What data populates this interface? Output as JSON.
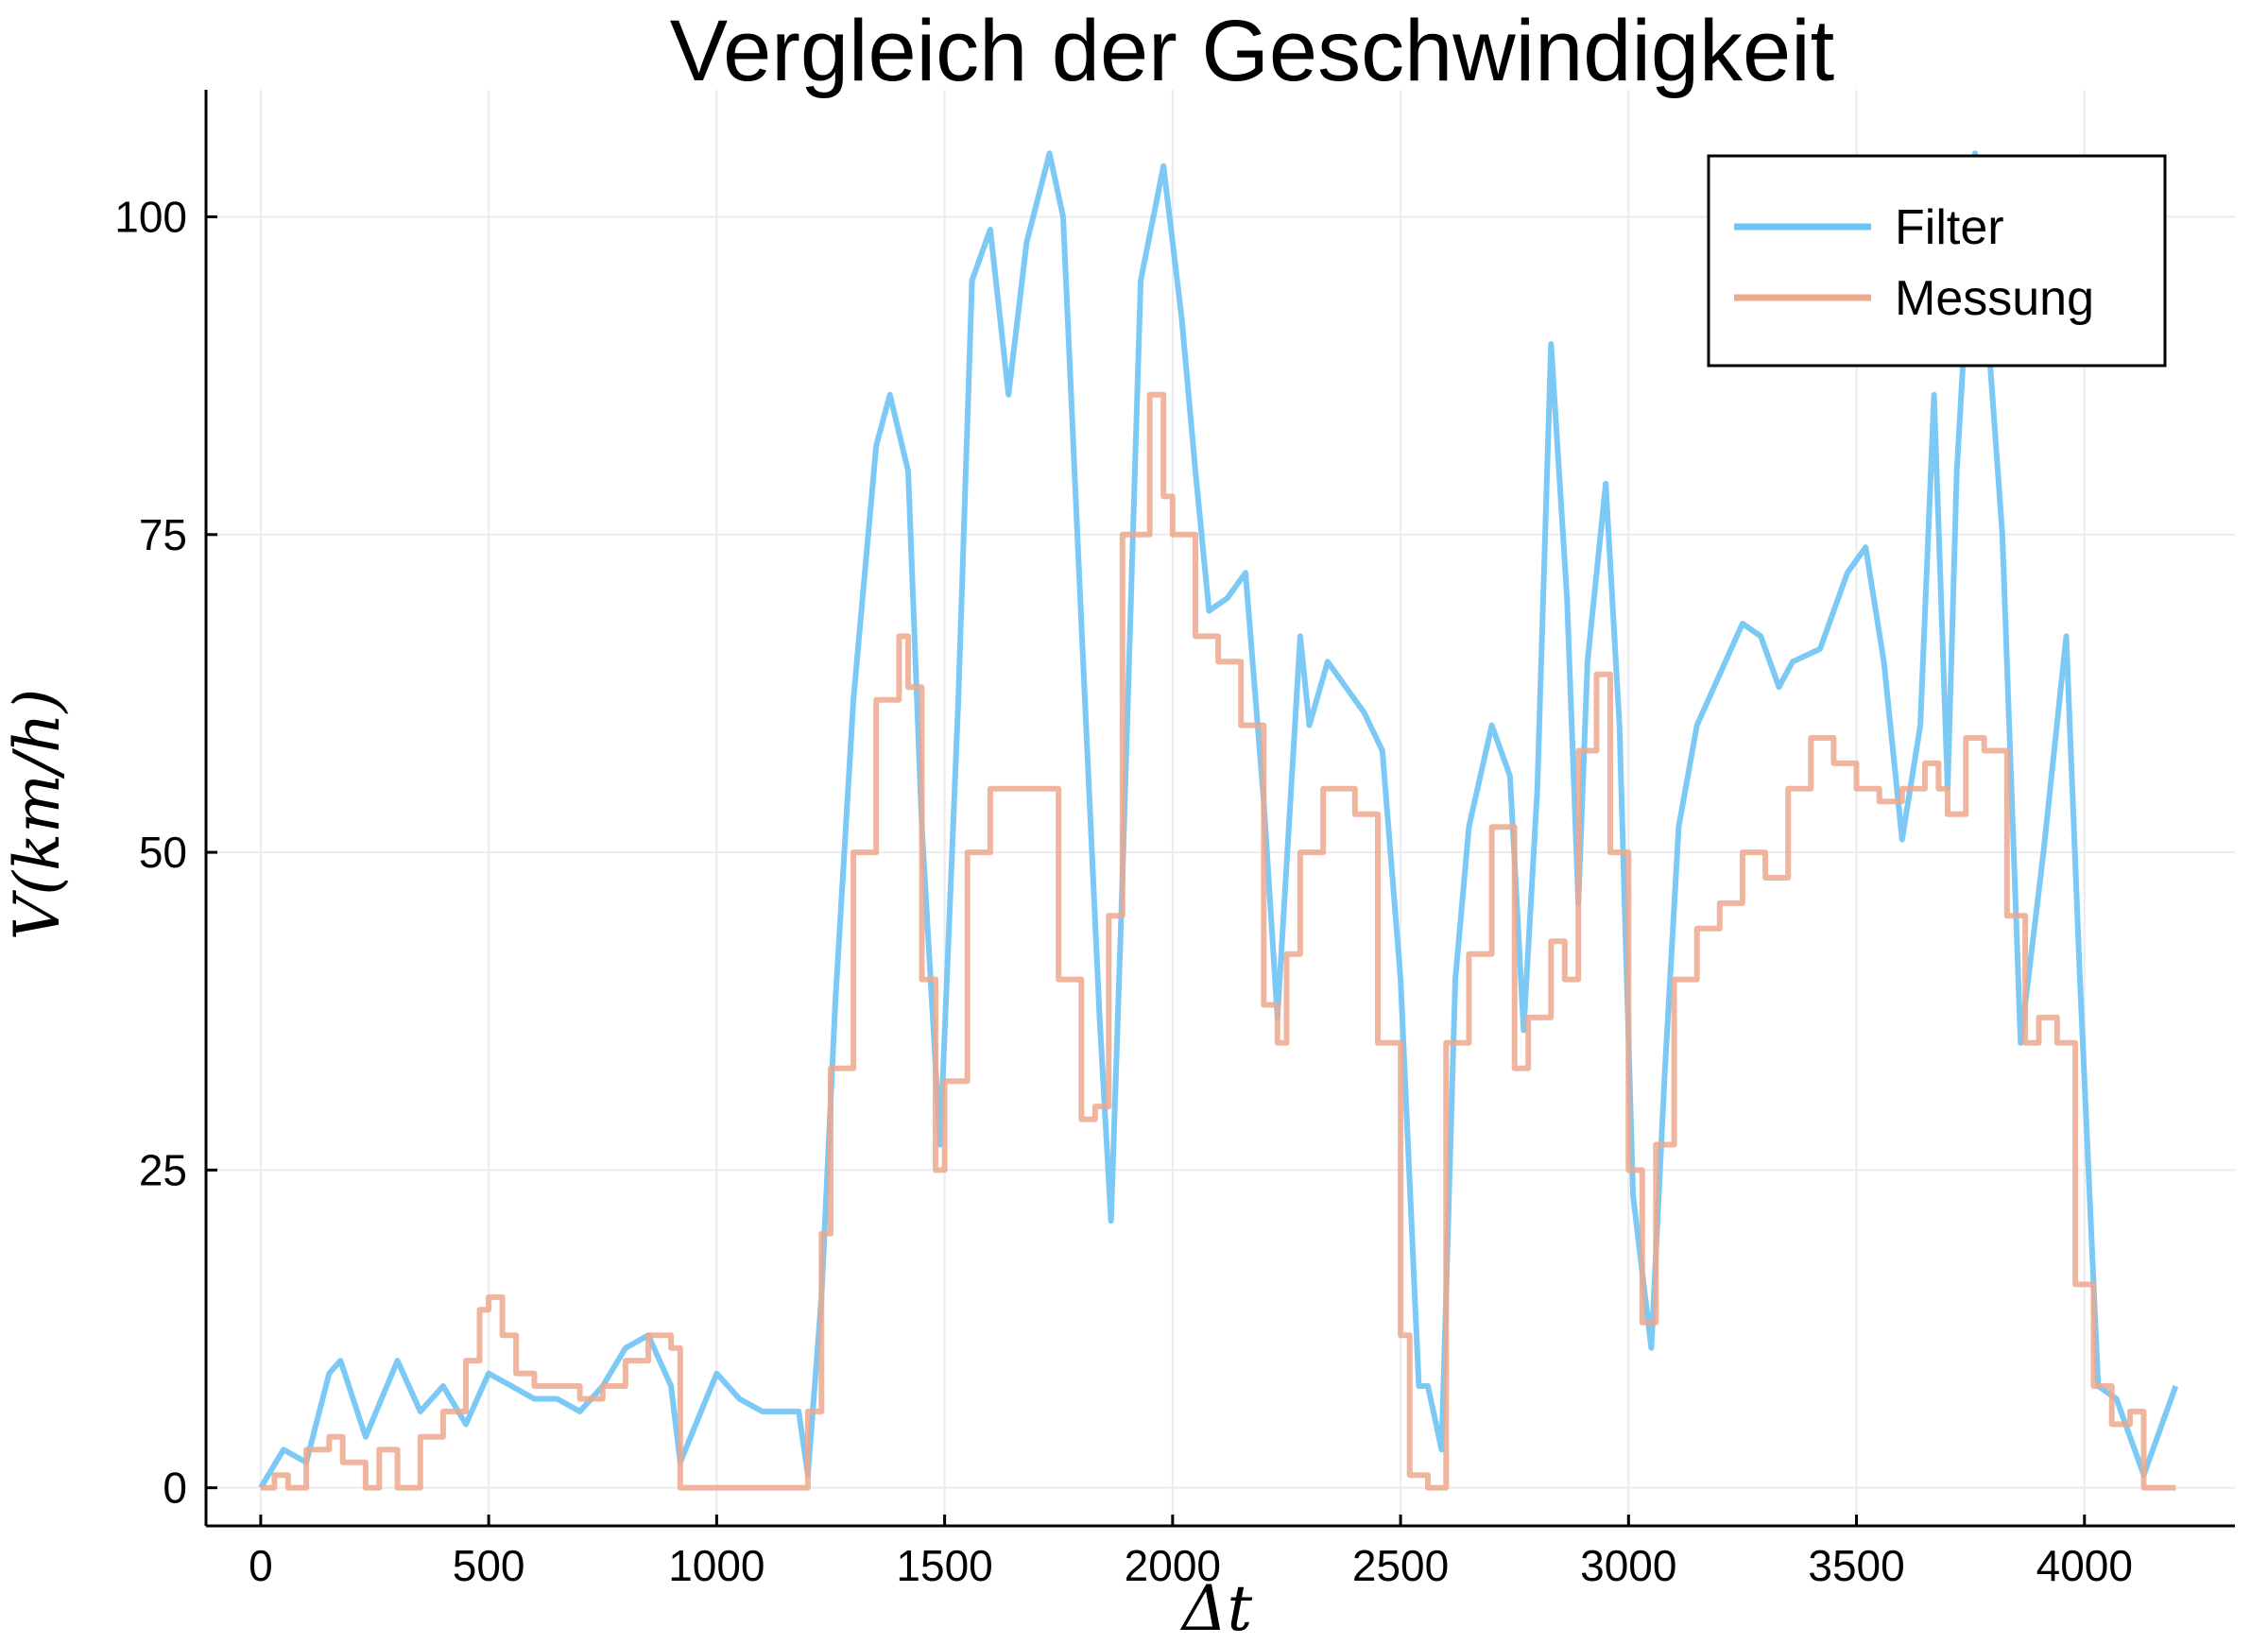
{
  "chart_data": {
    "type": "line",
    "title": "Vergleich der Geschwindigkeit",
    "xlabel": "Δt",
    "ylabel": "V(km/h)",
    "xlim": [
      -120,
      4330
    ],
    "ylim": [
      -3,
      110
    ],
    "xticks": [
      0,
      500,
      1000,
      1500,
      2000,
      2500,
      3000,
      3500,
      4000
    ],
    "yticks": [
      0,
      25,
      50,
      75,
      100
    ],
    "grid": true,
    "legend_position": "top-right",
    "series": [
      {
        "name": "Filter",
        "color": "#6ec3f5",
        "x": [
          0,
          50,
          100,
          150,
          175,
          230,
          300,
          350,
          400,
          450,
          500,
          550,
          600,
          650,
          700,
          750,
          800,
          850,
          900,
          920,
          1000,
          1050,
          1100,
          1150,
          1180,
          1200,
          1230,
          1260,
          1300,
          1350,
          1380,
          1420,
          1450,
          1490,
          1530,
          1560,
          1600,
          1640,
          1680,
          1730,
          1760,
          1800,
          1840,
          1865,
          1890,
          1930,
          1980,
          2020,
          2050,
          2080,
          2120,
          2160,
          2200,
          2230,
          2260,
          2280,
          2300,
          2340,
          2380,
          2420,
          2460,
          2500,
          2540,
          2560,
          2590,
          2620,
          2650,
          2700,
          2740,
          2770,
          2800,
          2830,
          2865,
          2890,
          2910,
          2950,
          2980,
          3010,
          3050,
          3080,
          3110,
          3150,
          3200,
          3250,
          3290,
          3330,
          3360,
          3420,
          3480,
          3520,
          3560,
          3600,
          3640,
          3670,
          3700,
          3720,
          3760,
          3780,
          3820,
          3860,
          3910,
          3960,
          3990,
          4030,
          4070,
          4100,
          4130,
          4200
        ],
        "y": [
          0,
          3,
          2,
          9,
          10,
          4,
          10,
          6,
          8,
          5,
          9,
          8,
          7,
          7,
          6,
          8,
          11,
          12,
          8,
          2,
          9,
          7,
          6,
          6,
          6,
          1,
          15,
          38,
          62,
          82,
          86,
          80,
          52,
          27,
          62,
          95,
          99,
          86,
          98,
          105,
          100,
          68,
          37,
          21,
          48,
          95,
          104,
          92,
          80,
          69,
          70,
          72,
          54,
          37,
          55,
          67,
          60,
          65,
          63,
          61,
          58,
          40,
          8,
          8,
          3,
          40,
          52,
          60,
          56,
          36,
          55,
          90,
          70,
          46,
          65,
          79,
          60,
          23,
          11,
          33,
          52,
          60,
          64,
          68,
          67,
          63,
          65,
          66,
          72,
          74,
          65,
          51,
          60,
          86,
          55,
          80,
          105,
          95,
          75,
          35,
          50,
          67,
          40,
          8,
          7,
          4,
          1,
          8
        ]
      },
      {
        "name": "Messung",
        "color": "#eda88d",
        "x": [
          0,
          30,
          60,
          100,
          150,
          180,
          230,
          260,
          300,
          350,
          400,
          450,
          480,
          500,
          530,
          560,
          600,
          650,
          700,
          750,
          800,
          850,
          900,
          920,
          1000,
          1100,
          1180,
          1200,
          1230,
          1250,
          1300,
          1350,
          1400,
          1420,
          1450,
          1480,
          1500,
          1550,
          1600,
          1650,
          1700,
          1750,
          1800,
          1830,
          1860,
          1890,
          1950,
          1980,
          2000,
          2050,
          2100,
          2150,
          2200,
          2230,
          2250,
          2280,
          2330,
          2400,
          2450,
          2500,
          2520,
          2560,
          2600,
          2650,
          2700,
          2750,
          2780,
          2830,
          2860,
          2890,
          2930,
          2960,
          3000,
          3030,
          3060,
          3100,
          3150,
          3200,
          3250,
          3300,
          3350,
          3400,
          3450,
          3500,
          3550,
          3600,
          3650,
          3680,
          3700,
          3740,
          3780,
          3830,
          3870,
          3900,
          3940,
          3980,
          4020,
          4060,
          4100,
          4130,
          4200
        ],
        "y": [
          0,
          1,
          0,
          3,
          4,
          2,
          0,
          3,
          0,
          4,
          6,
          10,
          14,
          15,
          12,
          9,
          8,
          8,
          7,
          8,
          10,
          12,
          11,
          0,
          0,
          0,
          0,
          6,
          20,
          33,
          50,
          62,
          67,
          63,
          40,
          25,
          32,
          50,
          55,
          55,
          55,
          40,
          29,
          30,
          45,
          75,
          86,
          78,
          75,
          67,
          65,
          60,
          38,
          35,
          42,
          50,
          55,
          53,
          35,
          12,
          1,
          0,
          35,
          42,
          52,
          33,
          37,
          43,
          40,
          58,
          64,
          50,
          25,
          13,
          27,
          40,
          44,
          46,
          50,
          48,
          55,
          59,
          57,
          55,
          54,
          55,
          57,
          55,
          53,
          59,
          58,
          45,
          35,
          37,
          35,
          16,
          8,
          5,
          6,
          0,
          0
        ]
      }
    ]
  }
}
